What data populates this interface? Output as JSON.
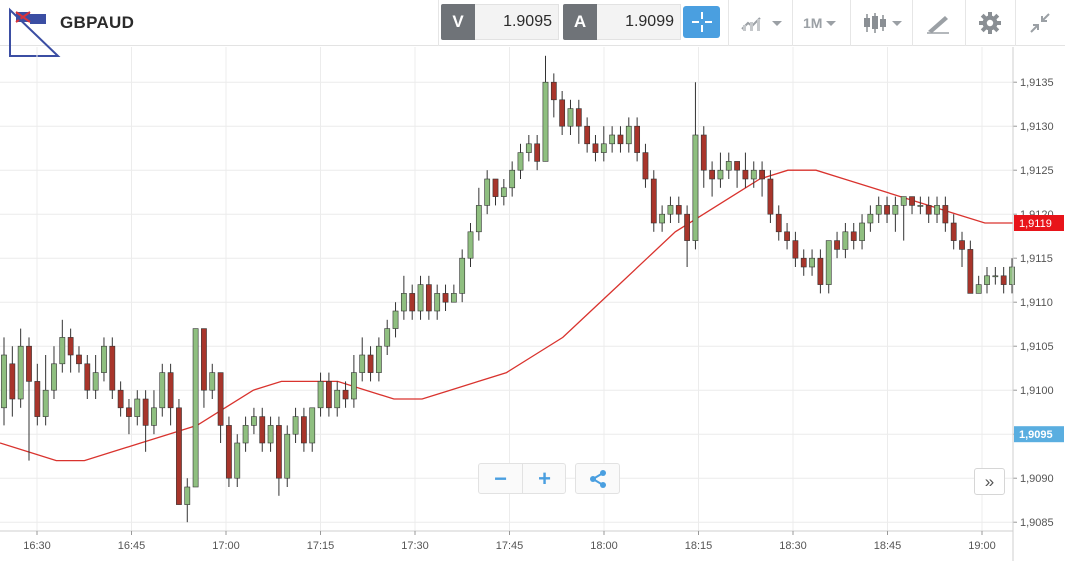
{
  "toolbar": {
    "symbol": "GBPAUD",
    "sell_label": "V",
    "sell_price": "1.9095",
    "buy_label": "A",
    "buy_price": "1.9099",
    "timeframe": "1M",
    "icons": [
      "flag-icon",
      "crosshair-icon",
      "chart-type-icon",
      "candlestick-icon",
      "drawing-icon",
      "gear-icon",
      "collapse-icon"
    ]
  },
  "controls": {
    "zoom_out": "−",
    "zoom_in": "+",
    "scroll_right": "»"
  },
  "chart_data": {
    "type": "candlestick",
    "x_ticks": [
      "16:30",
      "16:45",
      "17:00",
      "17:15",
      "17:30",
      "17:45",
      "18:00",
      "18:15",
      "18:30",
      "18:45",
      "19:00"
    ],
    "y_ticks": [
      "1,9135",
      "1,9130",
      "1,9125",
      "1,9120",
      "1,9115",
      "1,9110",
      "1,9105",
      "1,9100",
      "1,9095",
      "1,9090",
      "1,9085"
    ],
    "ylim": [
      1.9084,
      1.9139
    ],
    "grid": true,
    "current_price_label": "1,9119",
    "bid_label": "1,9095",
    "colors": {
      "up": "#8fbf80",
      "down": "#a8352b",
      "ma": "#d9332e",
      "grid": "#ececec",
      "current": "#e8141a",
      "bid": "#5aaee0"
    },
    "moving_average": [
      1.9094,
      1.9093,
      1.9092,
      1.9092,
      1.9093,
      1.9094,
      1.9095,
      1.9096,
      1.9098,
      1.91,
      1.9101,
      1.9101,
      1.9101,
      1.91,
      1.9099,
      1.9099,
      1.91,
      1.9101,
      1.9102,
      1.9104,
      1.9106,
      1.9109,
      1.9112,
      1.9115,
      1.9118,
      1.912,
      1.9122,
      1.9124,
      1.9125,
      1.9125,
      1.9124,
      1.9123,
      1.9122,
      1.9121,
      1.912,
      1.9119,
      1.9119
    ],
    "candles": [
      [
        1.9098,
        1.9104,
        1.9106,
        1.9096
      ],
      [
        1.9103,
        1.9099,
        1.9105,
        1.9097
      ],
      [
        1.9099,
        1.9105,
        1.9107,
        1.9098
      ],
      [
        1.9105,
        1.9101,
        1.9106,
        1.9092
      ],
      [
        1.9101,
        1.9097,
        1.9103,
        1.9096
      ],
      [
        1.9097,
        1.91,
        1.9104,
        1.9096
      ],
      [
        1.91,
        1.9103,
        1.9105,
        1.9099
      ],
      [
        1.9103,
        1.9106,
        1.9108,
        1.9102
      ],
      [
        1.9106,
        1.9104,
        1.9107,
        1.9102
      ],
      [
        1.9104,
        1.9103,
        1.9105,
        1.9102
      ],
      [
        1.9103,
        1.91,
        1.9104,
        1.9099
      ],
      [
        1.91,
        1.9102,
        1.9104,
        1.9099
      ],
      [
        1.9102,
        1.9105,
        1.9106,
        1.9101
      ],
      [
        1.9105,
        1.91,
        1.9106,
        1.9099
      ],
      [
        1.91,
        1.9098,
        1.9101,
        1.9097
      ],
      [
        1.9098,
        1.9097,
        1.9099,
        1.9095
      ],
      [
        1.9097,
        1.9099,
        1.91,
        1.9096
      ],
      [
        1.9099,
        1.9096,
        1.91,
        1.9093
      ],
      [
        1.9096,
        1.9098,
        1.91,
        1.9095
      ],
      [
        1.9098,
        1.9102,
        1.9103,
        1.9097
      ],
      [
        1.9102,
        1.9098,
        1.9103,
        1.9096
      ],
      [
        1.9098,
        1.9087,
        1.9099,
        1.9087
      ],
      [
        1.9087,
        1.9089,
        1.909,
        1.9085
      ],
      [
        1.9089,
        1.9107,
        1.9107,
        1.9089
      ],
      [
        1.9107,
        1.91,
        1.9107,
        1.9098
      ],
      [
        1.91,
        1.9102,
        1.9103,
        1.9099
      ],
      [
        1.9102,
        1.9096,
        1.9102,
        1.9094
      ],
      [
        1.9096,
        1.909,
        1.9097,
        1.9089
      ],
      [
        1.909,
        1.9094,
        1.9095,
        1.9089
      ],
      [
        1.9094,
        1.9096,
        1.9097,
        1.9093
      ],
      [
        1.9096,
        1.9097,
        1.9098,
        1.9095
      ],
      [
        1.9097,
        1.9094,
        1.9098,
        1.9093
      ],
      [
        1.9094,
        1.9096,
        1.9097,
        1.9093
      ],
      [
        1.9096,
        1.909,
        1.9097,
        1.9088
      ],
      [
        1.909,
        1.9095,
        1.9096,
        1.9089
      ],
      [
        1.9095,
        1.9097,
        1.9098,
        1.9094
      ],
      [
        1.9097,
        1.9094,
        1.9098,
        1.9093
      ],
      [
        1.9094,
        1.9098,
        1.9098,
        1.9093
      ],
      [
        1.9098,
        1.9101,
        1.9102,
        1.9097
      ],
      [
        1.9101,
        1.9098,
        1.9102,
        1.9097
      ],
      [
        1.9098,
        1.91,
        1.9101,
        1.9097
      ],
      [
        1.91,
        1.9099,
        1.9101,
        1.9098
      ],
      [
        1.9099,
        1.9102,
        1.9104,
        1.9098
      ],
      [
        1.9102,
        1.9104,
        1.9106,
        1.9101
      ],
      [
        1.9104,
        1.9102,
        1.9105,
        1.9101
      ],
      [
        1.9102,
        1.9105,
        1.9106,
        1.9101
      ],
      [
        1.9105,
        1.9107,
        1.9108,
        1.9104
      ],
      [
        1.9107,
        1.9109,
        1.911,
        1.9106
      ],
      [
        1.9109,
        1.9111,
        1.9113,
        1.9108
      ],
      [
        1.9111,
        1.9109,
        1.9112,
        1.9108
      ],
      [
        1.9109,
        1.9112,
        1.9113,
        1.9108
      ],
      [
        1.9112,
        1.9109,
        1.9113,
        1.9108
      ],
      [
        1.9109,
        1.9111,
        1.9112,
        1.9108
      ],
      [
        1.9111,
        1.911,
        1.9112,
        1.9109
      ],
      [
        1.911,
        1.9111,
        1.9112,
        1.911
      ],
      [
        1.9111,
        1.9115,
        1.9116,
        1.911
      ],
      [
        1.9115,
        1.9118,
        1.9119,
        1.9114
      ],
      [
        1.9118,
        1.9121,
        1.9123,
        1.9117
      ],
      [
        1.9121,
        1.9124,
        1.9125,
        1.912
      ],
      [
        1.9124,
        1.9122,
        1.9124,
        1.9121
      ],
      [
        1.9122,
        1.9123,
        1.9124,
        1.9121
      ],
      [
        1.9123,
        1.9125,
        1.9126,
        1.9122
      ],
      [
        1.9125,
        1.9127,
        1.9128,
        1.9124
      ],
      [
        1.9127,
        1.9128,
        1.9129,
        1.9126
      ],
      [
        1.9128,
        1.9126,
        1.9129,
        1.9125
      ],
      [
        1.9126,
        1.9135,
        1.9138,
        1.9126
      ],
      [
        1.9135,
        1.9133,
        1.9136,
        1.9131
      ],
      [
        1.9133,
        1.913,
        1.9134,
        1.9129
      ],
      [
        1.913,
        1.9132,
        1.9133,
        1.9129
      ],
      [
        1.9132,
        1.913,
        1.9133,
        1.9128
      ],
      [
        1.913,
        1.9128,
        1.9131,
        1.9127
      ],
      [
        1.9128,
        1.9127,
        1.9129,
        1.9126
      ],
      [
        1.9127,
        1.9128,
        1.913,
        1.9126
      ],
      [
        1.9128,
        1.9129,
        1.913,
        1.9127
      ],
      [
        1.9129,
        1.9128,
        1.913,
        1.9127
      ],
      [
        1.9128,
        1.913,
        1.9131,
        1.9127
      ],
      [
        1.913,
        1.9127,
        1.9131,
        1.9126
      ],
      [
        1.9127,
        1.9124,
        1.9128,
        1.9123
      ],
      [
        1.9124,
        1.9119,
        1.9125,
        1.9118
      ],
      [
        1.9119,
        1.912,
        1.9121,
        1.9118
      ],
      [
        1.912,
        1.9121,
        1.9122,
        1.9119
      ],
      [
        1.9121,
        1.912,
        1.9122,
        1.9119
      ],
      [
        1.912,
        1.9117,
        1.9121,
        1.9114
      ],
      [
        1.9117,
        1.9129,
        1.9135,
        1.9116
      ],
      [
        1.9129,
        1.9125,
        1.913,
        1.9123
      ],
      [
        1.9125,
        1.9124,
        1.9126,
        1.9122
      ],
      [
        1.9124,
        1.9125,
        1.9127,
        1.9123
      ],
      [
        1.9125,
        1.9126,
        1.9127,
        1.9124
      ],
      [
        1.9126,
        1.9125,
        1.9126,
        1.9123
      ],
      [
        1.9125,
        1.9124,
        1.9127,
        1.9123
      ],
      [
        1.9124,
        1.9125,
        1.9126,
        1.9123
      ],
      [
        1.9125,
        1.9124,
        1.9126,
        1.9122
      ],
      [
        1.9124,
        1.912,
        1.9125,
        1.9119
      ],
      [
        1.912,
        1.9118,
        1.9121,
        1.9117
      ],
      [
        1.9118,
        1.9117,
        1.9119,
        1.9116
      ],
      [
        1.9117,
        1.9115,
        1.9118,
        1.9114
      ],
      [
        1.9115,
        1.9114,
        1.9116,
        1.9113
      ],
      [
        1.9114,
        1.9115,
        1.9116,
        1.9113
      ],
      [
        1.9115,
        1.9112,
        1.9116,
        1.9111
      ],
      [
        1.9112,
        1.9117,
        1.9117,
        1.9111
      ],
      [
        1.9117,
        1.9116,
        1.9118,
        1.9115
      ],
      [
        1.9116,
        1.9118,
        1.9119,
        1.9115
      ],
      [
        1.9118,
        1.9117,
        1.9119,
        1.9116
      ],
      [
        1.9117,
        1.9119,
        1.912,
        1.9116
      ],
      [
        1.9119,
        1.912,
        1.9121,
        1.9118
      ],
      [
        1.912,
        1.9121,
        1.9122,
        1.9119
      ],
      [
        1.9121,
        1.912,
        1.9122,
        1.9119
      ],
      [
        1.912,
        1.9121,
        1.9122,
        1.9118
      ],
      [
        1.9121,
        1.9122,
        1.9122,
        1.9117
      ],
      [
        1.9122,
        1.9121,
        1.9122,
        1.912
      ],
      [
        1.9121,
        1.9121,
        1.9122,
        1.912
      ],
      [
        1.9121,
        1.912,
        1.9122,
        1.9119
      ],
      [
        1.912,
        1.9121,
        1.9122,
        1.9119
      ],
      [
        1.9121,
        1.9119,
        1.9122,
        1.9118
      ],
      [
        1.9119,
        1.9117,
        1.912,
        1.9116
      ],
      [
        1.9117,
        1.9116,
        1.9118,
        1.9114
      ],
      [
        1.9116,
        1.9111,
        1.9117,
        1.9111
      ],
      [
        1.9111,
        1.9112,
        1.9113,
        1.9111
      ],
      [
        1.9112,
        1.9113,
        1.9114,
        1.9111
      ],
      [
        1.9113,
        1.9113,
        1.9114,
        1.9112
      ],
      [
        1.9113,
        1.9112,
        1.9114,
        1.9111
      ],
      [
        1.9112,
        1.9114,
        1.9115,
        1.9111
      ]
    ]
  }
}
